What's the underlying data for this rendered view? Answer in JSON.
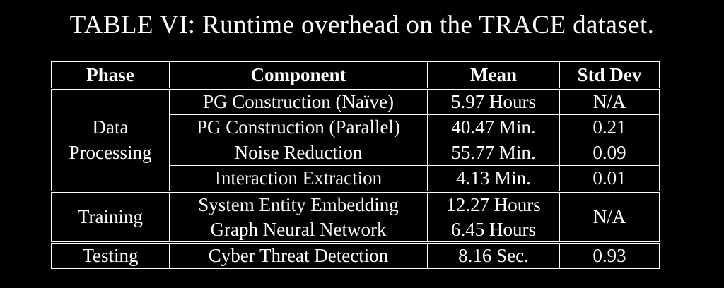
{
  "caption": "TABLE VI: Runtime overhead on the TRACE dataset.",
  "headers": {
    "phase": "Phase",
    "component": "Component",
    "mean": "Mean",
    "std": "Std Dev"
  },
  "groups": {
    "data_processing": {
      "phase_line1": "Data",
      "phase_line2": "Processing",
      "rows": [
        {
          "component": "PG Construction (Naïve)",
          "mean": "5.97 Hours",
          "std": "N/A"
        },
        {
          "component": "PG Construction (Parallel)",
          "mean": "40.47 Min.",
          "std": "0.21"
        },
        {
          "component": "Noise Reduction",
          "mean": "55.77 Min.",
          "std": "0.09"
        },
        {
          "component": "Interaction Extraction",
          "mean": "4.13 Min.",
          "std": "0.01"
        }
      ]
    },
    "training": {
      "phase": "Training",
      "std": "N/A",
      "rows": [
        {
          "component": "System Entity Embedding",
          "mean": "12.27 Hours"
        },
        {
          "component": "Graph Neural Network",
          "mean": "6.45 Hours"
        }
      ]
    },
    "testing": {
      "phase": "Testing",
      "rows": [
        {
          "component": "Cyber Threat Detection",
          "mean": "8.16 Sec.",
          "std": "0.93"
        }
      ]
    }
  }
}
